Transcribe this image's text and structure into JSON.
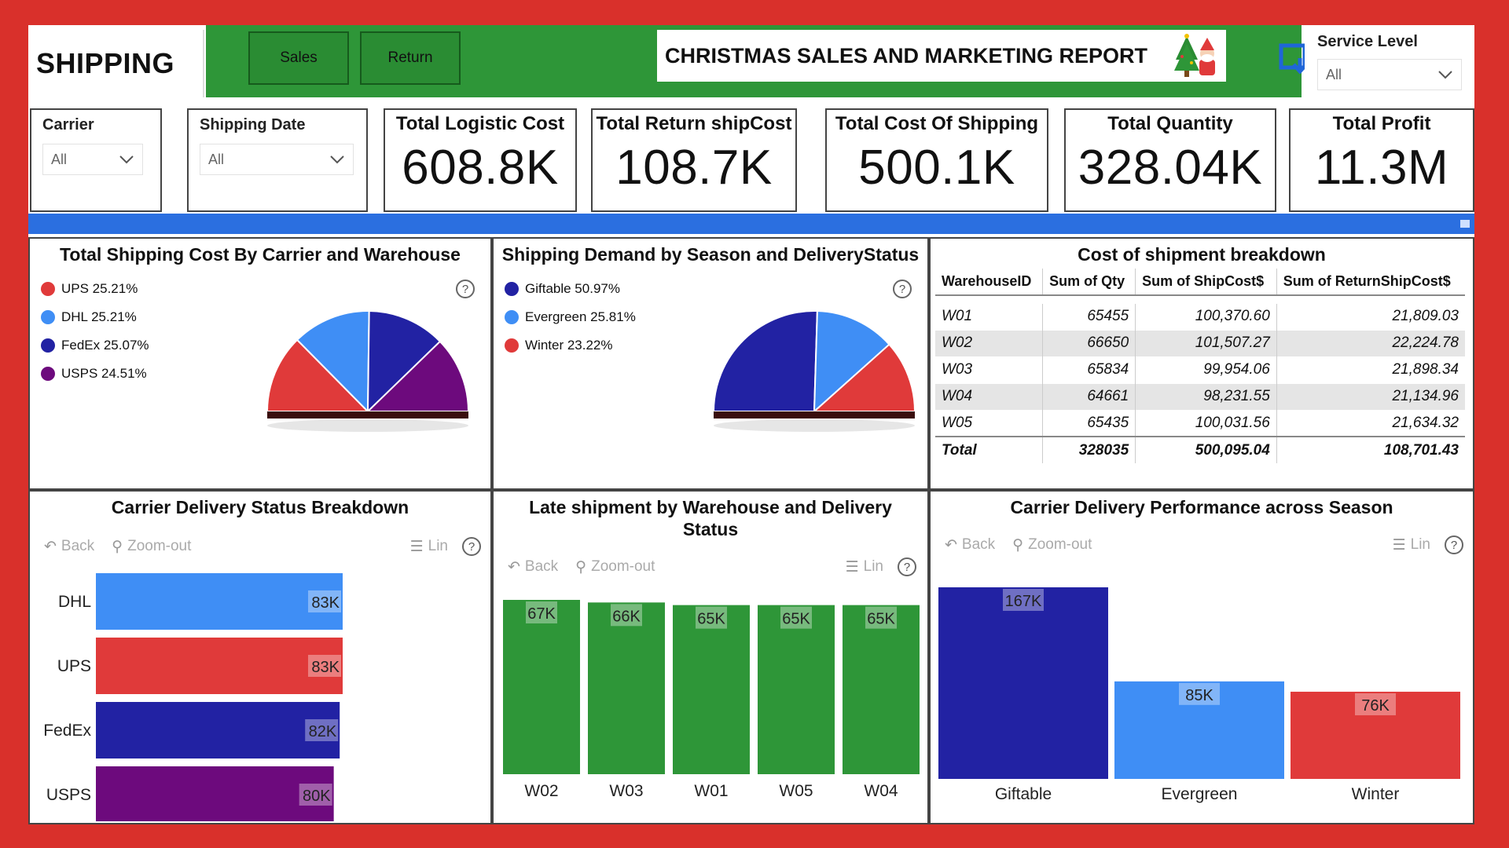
{
  "brand": "SHIPPING",
  "nav": {
    "sales": "Sales",
    "return": "Return"
  },
  "report_title": "CHRISTMAS SALES AND MARKETING REPORT",
  "service_level": {
    "label": "Service Level",
    "value": "All"
  },
  "slicers": {
    "carrier": {
      "label": "Carrier",
      "value": "All"
    },
    "shipping_date": {
      "label": "Shipping Date",
      "value": "All"
    }
  },
  "cards": [
    {
      "title": "Total Logistic Cost",
      "value": "608.8K"
    },
    {
      "title": "Total Return shipCost",
      "value": "108.7K"
    },
    {
      "title": "Total Cost Of Shipping",
      "value": "500.1K"
    },
    {
      "title": "Total Quantity",
      "value": "328.04K"
    },
    {
      "title": "Total Profit",
      "value": "11.3M"
    }
  ],
  "colors": {
    "red": "#e03a3a",
    "blue": "#3f8ef5",
    "navy": "#2222a3",
    "purple": "#6d0a7d",
    "green": "#2e9638"
  },
  "toolbar": {
    "back": "Back",
    "zoom": "Zoom-out",
    "lin": "Lin",
    "help": "?"
  },
  "chart_data": [
    {
      "type": "pie",
      "title": "Total Shipping Cost By Carrier and Warehouse",
      "series": [
        {
          "name": "UPS",
          "label": "UPS 25.21%",
          "value": 25.21,
          "color": "#e03a3a"
        },
        {
          "name": "DHL",
          "label": "DHL 25.21%",
          "value": 25.21,
          "color": "#3f8ef5"
        },
        {
          "name": "FedEx",
          "label": "FedEx 25.07%",
          "value": 25.07,
          "color": "#2222a3"
        },
        {
          "name": "USPS",
          "label": "USPS 24.51%",
          "value": 24.51,
          "color": "#6d0a7d"
        }
      ],
      "legend": "top-left"
    },
    {
      "type": "pie",
      "title": "Shipping Demand by Season and DeliveryStatus",
      "series": [
        {
          "name": "Giftable",
          "label": "Giftable 50.97%",
          "value": 50.97,
          "color": "#2222a3"
        },
        {
          "name": "Evergreen",
          "label": "Evergreen 25.81%",
          "value": 25.81,
          "color": "#3f8ef5"
        },
        {
          "name": "Winter",
          "label": "Winter 23.22%",
          "value": 23.22,
          "color": "#e03a3a"
        }
      ],
      "legend": "top-left"
    },
    {
      "type": "table",
      "title": "Cost of shipment breakdown",
      "columns": [
        "WarehouseID",
        "Sum of Qty",
        "Sum of ShipCost$",
        "Sum of ReturnShipCost$"
      ],
      "rows": [
        [
          "W01",
          "65455",
          "100,370.60",
          "21,809.03"
        ],
        [
          "W02",
          "66650",
          "101,507.27",
          "22,224.78"
        ],
        [
          "W03",
          "65834",
          "99,954.06",
          "21,898.34"
        ],
        [
          "W04",
          "64661",
          "98,231.55",
          "21,134.96"
        ],
        [
          "W05",
          "65435",
          "100,031.56",
          "21,634.32"
        ]
      ],
      "total": [
        "Total",
        "328035",
        "500,095.04",
        "108,701.43"
      ]
    },
    {
      "type": "bar",
      "orientation": "horizontal",
      "title": "Carrier Delivery Status Breakdown",
      "categories": [
        "DHL",
        "UPS",
        "FedEx",
        "USPS"
      ],
      "values": [
        83,
        83,
        82,
        80
      ],
      "labels": [
        "83K",
        "83K",
        "82K",
        "80K"
      ],
      "colors": [
        "#3f8ef5",
        "#e03a3a",
        "#2222a3",
        "#6d0a7d"
      ]
    },
    {
      "type": "bar",
      "title": "Late shipment by Warehouse and Delivery Status",
      "categories": [
        "W02",
        "W03",
        "W01",
        "W05",
        "W04"
      ],
      "values": [
        67,
        66,
        65,
        65,
        65
      ],
      "labels": [
        "67K",
        "66K",
        "65K",
        "65K",
        "65K"
      ],
      "colors": [
        "#2e9638",
        "#2e9638",
        "#2e9638",
        "#2e9638",
        "#2e9638"
      ]
    },
    {
      "type": "bar",
      "title": "Carrier Delivery Performance across Season",
      "categories": [
        "Giftable",
        "Evergreen",
        "Winter"
      ],
      "values": [
        167,
        85,
        76
      ],
      "labels": [
        "167K",
        "85K",
        "76K"
      ],
      "colors": [
        "#2222a3",
        "#3f8ef5",
        "#e03a3a"
      ]
    }
  ]
}
